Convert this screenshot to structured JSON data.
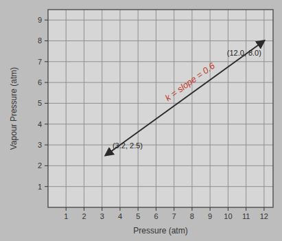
{
  "chart_data": {
    "type": "line",
    "x_label": "Pressure (atm)",
    "y_label": "Vapour Pressure (atm)",
    "annotations": [
      "k = slope = 0.6",
      "(3.2, 2.5)",
      "(12.0, 8.0)"
    ],
    "x": [
      3.2,
      12
    ],
    "values": [
      2.5,
      8
    ],
    "color": "#2b2b2b",
    "xlim": [
      0,
      12.5
    ],
    "xticks": [
      1,
      2,
      3,
      4,
      5,
      6,
      7,
      8,
      9,
      10,
      11,
      12
    ],
    "ylim": [
      0,
      9.5
    ],
    "yticks": [
      1,
      2,
      3,
      4,
      5,
      6,
      7,
      8,
      9
    ],
    "grid": true,
    "line_style": "solid",
    "marker": "arrow"
  }
}
